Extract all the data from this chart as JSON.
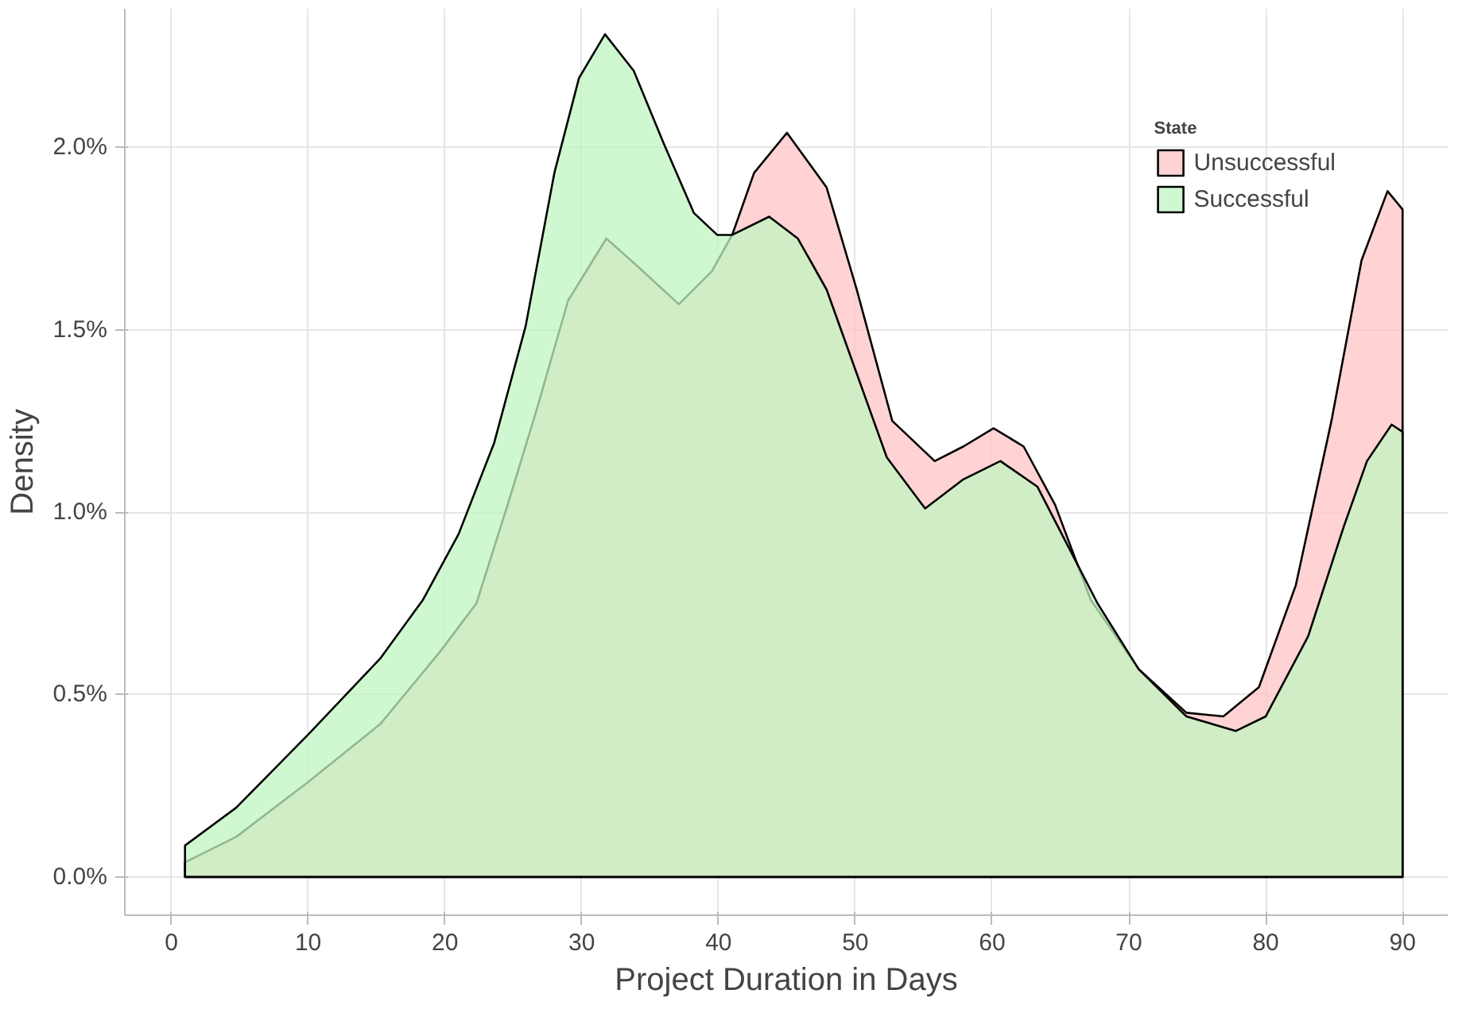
{
  "chart_data": {
    "type": "area",
    "xlabel": "Project Duration in Days",
    "ylabel": "Density",
    "legend_title": "State",
    "legend": "top right",
    "grid": true,
    "xlim": [
      -3.4,
      93.3
    ],
    "ylim": [
      -0.105,
      2.38
    ],
    "xticks": [
      0,
      10,
      20,
      30,
      40,
      50,
      60,
      70,
      80,
      90
    ],
    "yticks": [
      {
        "value": 0,
        "label": "0.0%"
      },
      {
        "value": 0.5,
        "label": "0.5%"
      },
      {
        "value": 1.0,
        "label": "1.0%"
      },
      {
        "value": 1.5,
        "label": "1.5%"
      },
      {
        "value": 2.0,
        "label": "2.0%"
      }
    ],
    "series": [
      {
        "name": "Unsuccessful",
        "color": "#ffc4c4",
        "x": [
          1,
          4.75,
          10,
          15.3,
          19.7,
          22.3,
          24.5,
          26.7,
          29,
          31.8,
          34.2,
          37.1,
          39.5,
          41,
          42.6,
          45,
          47.9,
          50.1,
          52.7,
          55.8,
          57.9,
          60.1,
          62.3,
          64.6,
          67.2,
          70.7,
          74.2,
          76.9,
          79.5,
          82.2,
          84.8,
          87,
          88.9,
          90
        ],
        "values": [
          0.04,
          0.11,
          0.26,
          0.42,
          0.62,
          0.75,
          1.01,
          1.28,
          1.58,
          1.75,
          1.67,
          1.57,
          1.66,
          1.76,
          1.93,
          2.04,
          1.89,
          1.61,
          1.25,
          1.14,
          1.18,
          1.23,
          1.18,
          1.02,
          0.76,
          0.57,
          0.45,
          0.44,
          0.52,
          0.8,
          1.25,
          1.69,
          1.88,
          1.83
        ]
      },
      {
        "name": "Successful",
        "color": "#c0f5c0",
        "x": [
          1,
          4.75,
          10,
          15.3,
          18.4,
          21,
          23.6,
          25.9,
          28,
          29.8,
          31.7,
          33.8,
          36,
          38.2,
          39.9,
          41,
          43.7,
          45.8,
          47.9,
          50.1,
          52.3,
          55.1,
          57.9,
          60.6,
          63.3,
          65.5,
          67.7,
          70.7,
          74.2,
          77.8,
          80,
          83.1,
          85.7,
          87.4,
          89.2,
          90
        ],
        "values": [
          0.086,
          0.19,
          0.39,
          0.6,
          0.76,
          0.94,
          1.19,
          1.51,
          1.93,
          2.19,
          2.31,
          2.21,
          2.01,
          1.82,
          1.76,
          1.76,
          1.81,
          1.75,
          1.61,
          1.38,
          1.15,
          1.01,
          1.09,
          1.14,
          1.07,
          0.91,
          0.75,
          0.57,
          0.44,
          0.4,
          0.44,
          0.66,
          0.96,
          1.14,
          1.24,
          1.22
        ]
      }
    ]
  }
}
